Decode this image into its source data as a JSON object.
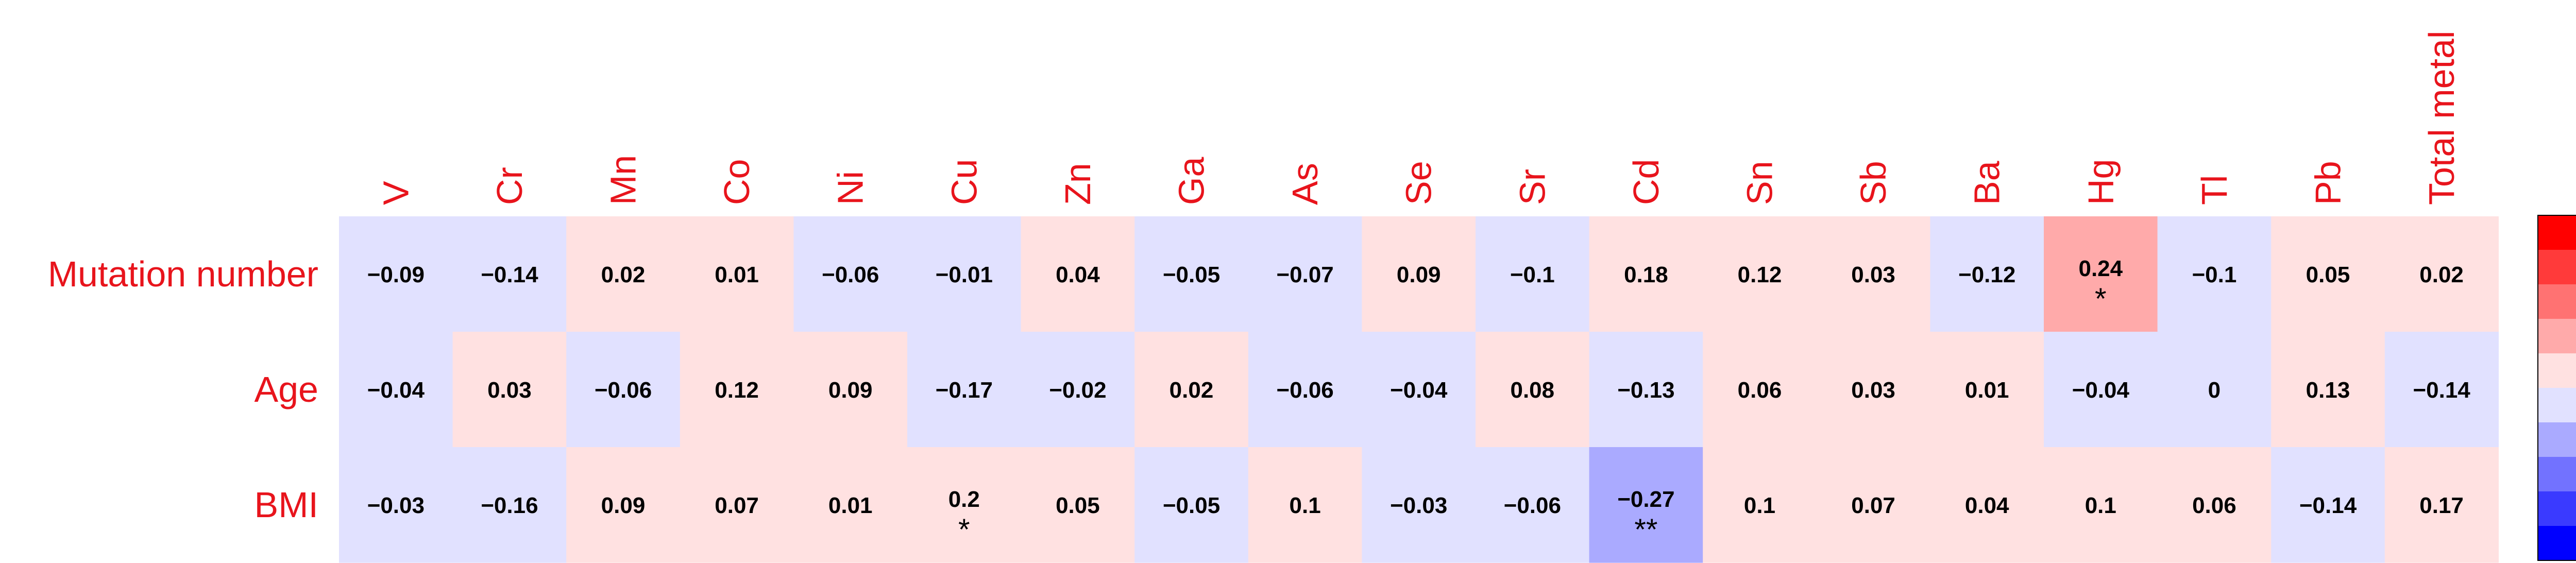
{
  "chart_data": {
    "type": "heatmap",
    "columns": [
      "V",
      "Cr",
      "Mn",
      "Co",
      "Ni",
      "Cu",
      "Zn",
      "Ga",
      "As",
      "Se",
      "Sr",
      "Cd",
      "Sn",
      "Sb",
      "Ba",
      "Hg",
      "Tl",
      "Pb",
      "Total metal"
    ],
    "rows": [
      "Mutation number",
      "Age",
      "BMI"
    ],
    "values": [
      [
        -0.09,
        -0.14,
        0.02,
        0.01,
        -0.06,
        -0.01,
        0.04,
        -0.05,
        -0.07,
        0.09,
        -0.1,
        0.18,
        0.12,
        0.03,
        -0.12,
        0.24,
        -0.1,
        0.05,
        0.02
      ],
      [
        -0.04,
        0.03,
        -0.06,
        0.12,
        0.09,
        -0.17,
        -0.02,
        0.02,
        -0.06,
        -0.04,
        0.08,
        -0.13,
        0.06,
        0.03,
        0.01,
        -0.04,
        0,
        0.13,
        -0.14
      ],
      [
        -0.03,
        -0.16,
        0.09,
        0.07,
        0.01,
        0.2,
        0.05,
        -0.05,
        0.1,
        -0.03,
        -0.06,
        -0.27,
        0.1,
        0.07,
        0.04,
        0.1,
        0.06,
        -0.14,
        0.17
      ]
    ],
    "significance": [
      [
        "",
        "",
        "",
        "",
        "",
        "",
        "",
        "",
        "",
        "",
        "",
        "",
        "",
        "",
        "",
        "*",
        "",
        "",
        ""
      ],
      [
        "",
        "",
        "",
        "",
        "",
        "",
        "",
        "",
        "",
        "",
        "",
        "",
        "",
        "",
        "",
        "",
        "",
        "",
        ""
      ],
      [
        "",
        "",
        "",
        "",
        "",
        "*",
        "",
        "",
        "",
        "",
        "",
        "**",
        "",
        "",
        "",
        "",
        "",
        "",
        ""
      ]
    ],
    "color_scale": {
      "range": [
        -1,
        1
      ],
      "ticks": [
        1,
        0.8,
        0.6,
        0.4,
        0.2,
        0,
        -0.2,
        -0.4,
        -0.6,
        -0.8,
        -1
      ],
      "colors_top_to_bottom": [
        "#ff0000",
        "#ff3a3a",
        "#ff7272",
        "#ffaaaa",
        "#ffe1e1",
        "#e1e1ff",
        "#aaaaff",
        "#7272ff",
        "#3a3aff",
        "#0000ff"
      ],
      "legend_placement": "right"
    }
  }
}
